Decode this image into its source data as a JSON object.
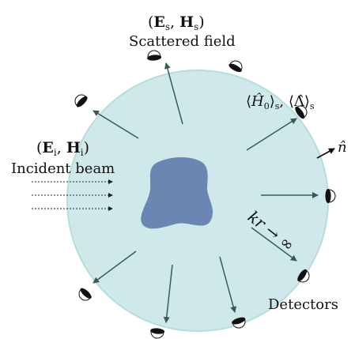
{
  "labels": {
    "scattered_title": "Scattered field",
    "incident_title": "Incident beam",
    "detectors": "Detectors"
  },
  "math": {
    "es_E": "E",
    "es_s1": "s",
    "es_H": "H",
    "es_s2": "s",
    "ei_E": "E",
    "ei_i1": "i",
    "ei_H": "H",
    "ei_i2": "i",
    "h0_H": "Ĥ",
    "h0_sub": "0",
    "h0_s1": "s",
    "lam": "Λ̂",
    "lam_s": "s",
    "nhat": "n̂",
    "kr": "kr → ∞"
  },
  "colors": {
    "sphere_fill": "#cfe9ea",
    "sphere_edge": "#b6dcdd",
    "scatterer": "#6c86b3",
    "arrow": "#3d5a55",
    "detector": "#111111"
  },
  "icons": {
    "detector": "detector-hemisphere-icon",
    "arrow": "arrow-icon"
  }
}
